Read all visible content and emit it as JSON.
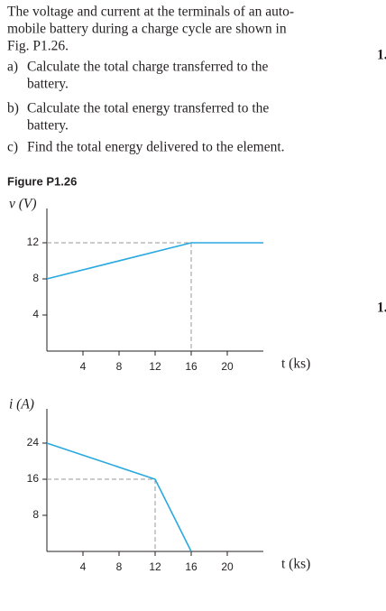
{
  "problem": {
    "lines": [
      "The voltage and current at the terminals of an auto-",
      "mobile battery during a charge cycle are shown in",
      "Fig. P1.26."
    ],
    "items": [
      {
        "label": "a)",
        "lines": [
          "Calculate the total charge transferred to the",
          "battery."
        ]
      },
      {
        "label": "b)",
        "lines": [
          "Calculate the total energy transferred to the",
          "battery."
        ]
      },
      {
        "label": "c)",
        "lines": [
          "Find the total energy delivered to the element."
        ]
      }
    ],
    "margin_marks": [
      "1.",
      "1."
    ],
    "figure_title": "Figure P1.26"
  },
  "chart_data": [
    {
      "type": "line",
      "ylabel": "v (V)",
      "xlabel": "t (ks)",
      "x": [
        0,
        16,
        24
      ],
      "values": [
        8,
        12,
        12
      ],
      "color": "#29a9e0",
      "xlim": [
        0,
        24
      ],
      "ylim": [
        0,
        15
      ],
      "xticks": [
        4,
        8,
        12,
        16,
        20
      ],
      "yticks": [
        4,
        8,
        12
      ],
      "guides": true
    },
    {
      "type": "line",
      "ylabel": "i (A)",
      "xlabel": "t (ks)",
      "x": [
        0,
        12,
        16
      ],
      "values": [
        24,
        16,
        0
      ],
      "color": "#29a9e0",
      "xlim": [
        0,
        24
      ],
      "ylim": [
        0,
        30
      ],
      "xticks": [
        4,
        8,
        12,
        16,
        20
      ],
      "yticks": [
        8,
        16,
        24
      ],
      "guides": true
    }
  ]
}
